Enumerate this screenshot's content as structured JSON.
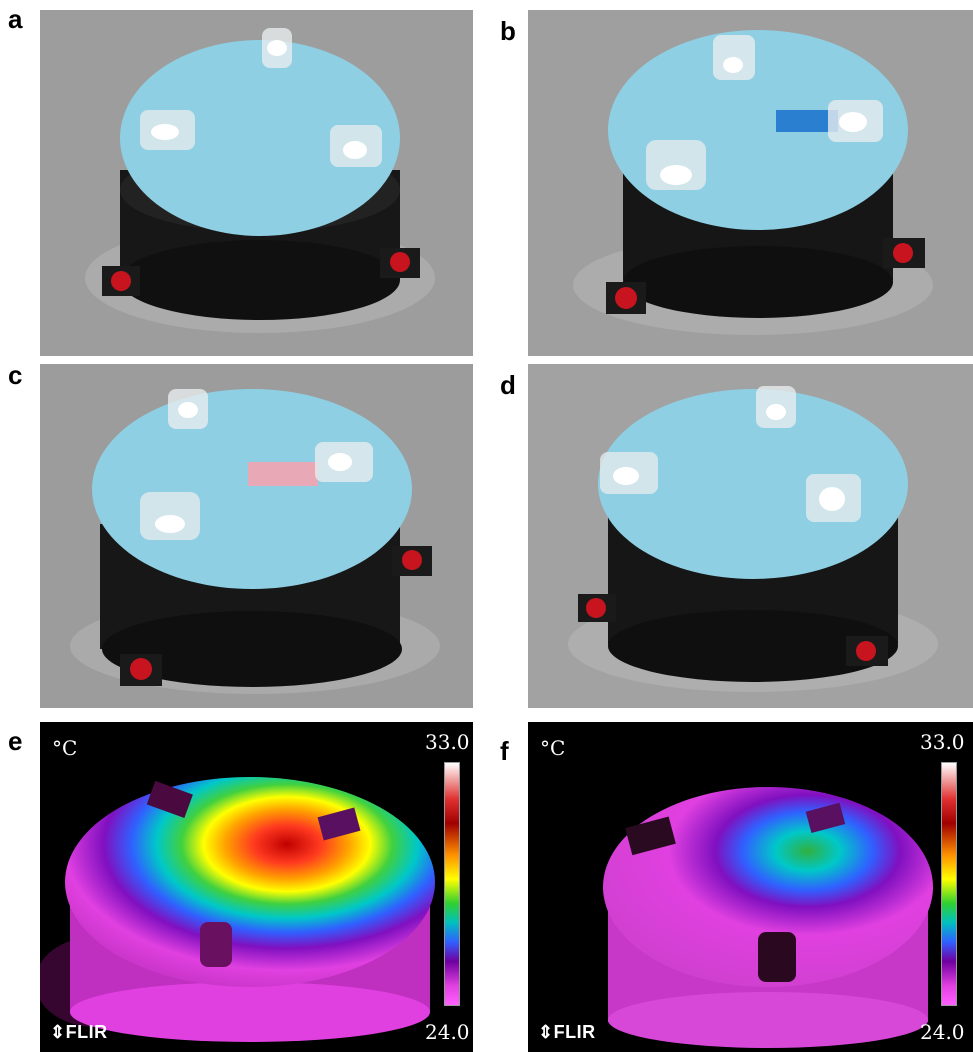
{
  "panels": {
    "a": {
      "label": "a"
    },
    "b": {
      "label": "b"
    },
    "c": {
      "label": "c"
    },
    "d": {
      "label": "d"
    },
    "e": {
      "label": "e",
      "unit": "°C",
      "max": "33.0",
      "min": "24.0",
      "brand": "FLIR"
    },
    "f": {
      "label": "f",
      "unit": "°C",
      "max": "33.0",
      "min": "24.0",
      "brand": "FLIR"
    }
  },
  "colors": {
    "background_gray": "#9c9c9c",
    "lid_blue": "#8ecfe3",
    "body_black": "#1a1a1a",
    "tag_red": "#c8141e",
    "strip_blue": "#2a7fd0",
    "strip_pink": "#e8a8b6"
  },
  "colorbar_stops": [
    "#ffffff",
    "#e03030",
    "#a00000",
    "#ff9000",
    "#ffff00",
    "#30d030",
    "#00c0c0",
    "#3060ff",
    "#7000a0",
    "#e040e0",
    "#ff60ff"
  ]
}
